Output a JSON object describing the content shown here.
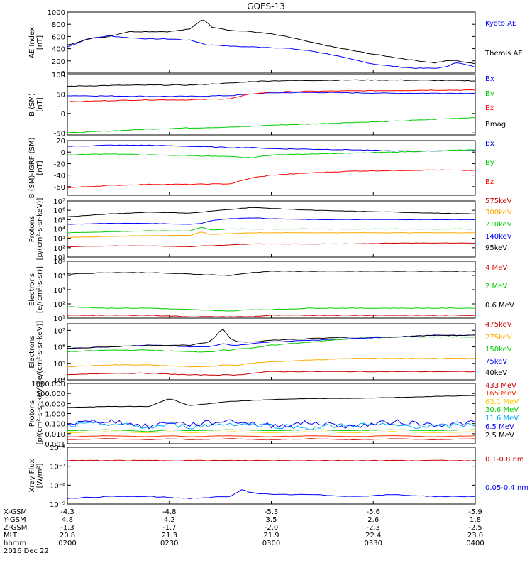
{
  "title": "GOES-13",
  "date": "2016 Dec 22",
  "ephemeris": {
    "rows": [
      {
        "name": "X-GSM",
        "values": [
          "-4.3",
          "-4.8",
          "-5.3",
          "-5.6",
          "-5.9"
        ]
      },
      {
        "name": "Y-GSM",
        "values": [
          "4.8",
          "4.2",
          "3.5",
          "2.6",
          "1.8"
        ]
      },
      {
        "name": "Z-GSM",
        "values": [
          "-1.3",
          "-1.7",
          "-2.0",
          "-2.3",
          "-2.5"
        ]
      },
      {
        "name": "MLT",
        "values": [
          "20.8",
          "21.3",
          "21.9",
          "22.4",
          "23.0"
        ]
      },
      {
        "name": "hhmm",
        "values": [
          "0200",
          "0230",
          "0300",
          "0330",
          "0400"
        ]
      }
    ]
  },
  "chart_data": [
    {
      "type": "line",
      "ylabel": [
        "AE Index",
        "[nT]"
      ],
      "ylim": [
        0,
        1000
      ],
      "yticks": [
        "1000",
        "800",
        "600",
        "400",
        "200",
        "0"
      ],
      "ytick_values": [
        1000,
        800,
        600,
        400,
        200,
        0
      ],
      "x": [
        0,
        0.05,
        0.1,
        0.15,
        0.2,
        0.25,
        0.3,
        0.33,
        0.34,
        0.35,
        0.37,
        0.4,
        0.45,
        0.5,
        0.55,
        0.6,
        0.65,
        0.7,
        0.75,
        0.8,
        0.85,
        0.9,
        0.93,
        0.95,
        1.0
      ],
      "series": [
        {
          "name": "Kyoto AE",
          "color": "#0000ff",
          "values": [
            430,
            560,
            610,
            580,
            560,
            560,
            540,
            490,
            460,
            460,
            460,
            440,
            430,
            420,
            400,
            360,
            300,
            220,
            150,
            110,
            80,
            80,
            100,
            180,
            100
          ]
        },
        {
          "name": "Themis AE",
          "color": "#000000",
          "values": [
            460,
            560,
            600,
            680,
            680,
            680,
            720,
            880,
            860,
            760,
            740,
            700,
            680,
            640,
            580,
            500,
            430,
            370,
            310,
            260,
            210,
            170,
            200,
            210,
            150
          ]
        }
      ]
    },
    {
      "type": "line",
      "ylabel": [
        "B (SM)",
        "[nT]"
      ],
      "ylim": [
        -55,
        100
      ],
      "yticks": [
        "100",
        "50",
        "0",
        "-50"
      ],
      "ytick_values": [
        100,
        50,
        0,
        -50
      ],
      "x": [
        0,
        0.1,
        0.2,
        0.3,
        0.4,
        0.45,
        0.5,
        0.6,
        0.7,
        0.8,
        0.9,
        1.0
      ],
      "series": [
        {
          "name": "Bx",
          "color": "#0000ff",
          "values": [
            46,
            45,
            44,
            44,
            46,
            50,
            53,
            54,
            53,
            52,
            52,
            52
          ]
        },
        {
          "name": "By",
          "color": "#00cc00",
          "values": [
            -50,
            -45,
            -40,
            -37,
            -35,
            -33,
            -30,
            -27,
            -23,
            -20,
            -15,
            -10
          ]
        },
        {
          "name": "Bz",
          "color": "#ff0000",
          "values": [
            30,
            33,
            35,
            35,
            38,
            50,
            55,
            57,
            58,
            59,
            60,
            60
          ]
        },
        {
          "name": "Bmag",
          "color": "#000000",
          "values": [
            70,
            72,
            73,
            73,
            78,
            82,
            84,
            85,
            86,
            86,
            85,
            84
          ]
        }
      ]
    },
    {
      "type": "line",
      "ylabel": [
        "B (SM)-IGRF (SM)",
        "[nT]"
      ],
      "ylim": [
        -75,
        20
      ],
      "yticks": [
        "20",
        "0",
        "-20",
        "-40",
        "-60"
      ],
      "ytick_values": [
        20,
        0,
        -20,
        -40,
        -60
      ],
      "x": [
        0,
        0.1,
        0.2,
        0.3,
        0.4,
        0.45,
        0.5,
        0.6,
        0.7,
        0.8,
        0.9,
        1.0
      ],
      "series": [
        {
          "name": "Bx",
          "color": "#0000ff",
          "values": [
            10,
            12,
            12,
            10,
            8,
            8,
            6,
            5,
            4,
            2,
            2,
            3
          ]
        },
        {
          "name": "By",
          "color": "#00cc00",
          "values": [
            -5,
            -3,
            -5,
            -6,
            -8,
            -10,
            -5,
            -3,
            -2,
            0,
            2,
            4
          ]
        },
        {
          "name": "Bz",
          "color": "#ff0000",
          "values": [
            -62,
            -58,
            -56,
            -56,
            -55,
            -45,
            -40,
            -36,
            -33,
            -32,
            -31,
            -32
          ]
        }
      ]
    },
    {
      "type": "line",
      "log": true,
      "ylabel": [
        "Protons",
        "[p/(cm²-s-sr-keV)]"
      ],
      "ylim": [
        1,
        7
      ],
      "yticks": [
        "10¹",
        "10²",
        "10³",
        "10⁴",
        "10⁵",
        "10⁶",
        "10⁷"
      ],
      "ytick_values": [
        1,
        2,
        3,
        4,
        5,
        6,
        7
      ],
      "x": [
        0,
        0.1,
        0.2,
        0.3,
        0.33,
        0.35,
        0.4,
        0.45,
        0.5,
        0.6,
        0.7,
        0.8,
        0.9,
        1.0
      ],
      "series": [
        {
          "name": "575keV",
          "color": "#cc0000",
          "values": [
            2.1,
            2.2,
            2.2,
            2.1,
            2.2,
            2.2,
            2.3,
            2.4,
            2.4,
            2.4,
            2.4,
            2.5,
            2.5,
            2.5
          ]
        },
        {
          "name": "300keV",
          "color": "#ffaa00",
          "values": [
            3.1,
            3.2,
            3.3,
            3.3,
            3.7,
            3.4,
            3.5,
            3.6,
            3.6,
            3.6,
            3.6,
            3.6,
            3.6,
            3.6
          ]
        },
        {
          "name": "210keV",
          "color": "#00cc00",
          "values": [
            3.6,
            3.7,
            3.8,
            3.8,
            4.2,
            3.9,
            4.0,
            4.0,
            4.0,
            4.0,
            4.0,
            4.0,
            4.0,
            4.0
          ]
        },
        {
          "name": "140keV",
          "color": "#0000ff",
          "values": [
            4.5,
            4.6,
            4.6,
            4.5,
            4.6,
            4.9,
            5.1,
            5.2,
            5.1,
            5.0,
            5.0,
            5.0,
            5.0,
            5.0
          ]
        },
        {
          "name": "95keV",
          "color": "#000000",
          "values": [
            5.3,
            5.6,
            5.8,
            5.7,
            5.8,
            5.9,
            6.1,
            6.3,
            6.2,
            6.0,
            5.9,
            5.8,
            5.7,
            5.6
          ]
        }
      ]
    },
    {
      "type": "line",
      "log": true,
      "ylabel": [
        "Electrons",
        "[e/(cm²-s-sr)]"
      ],
      "ylim": [
        1,
        5
      ],
      "yticks": [
        "10¹",
        "10²",
        "10³",
        "10⁴",
        "10⁵"
      ],
      "ytick_values": [
        1,
        2,
        3,
        4,
        5
      ],
      "x": [
        0,
        0.1,
        0.2,
        0.3,
        0.4,
        0.45,
        0.5,
        0.6,
        0.7,
        0.8,
        0.9,
        1.0
      ],
      "series": [
        {
          "name": "4 MeV",
          "color": "#cc0000",
          "values": [
            1.2,
            1.2,
            1.2,
            1.1,
            1.1,
            1.1,
            1.2,
            1.2,
            1.2,
            1.2,
            1.2,
            1.2
          ]
        },
        {
          "name": "2 MeV",
          "color": "#00cc00",
          "values": [
            1.8,
            1.7,
            1.7,
            1.6,
            1.5,
            1.6,
            1.6,
            1.7,
            1.7,
            1.7,
            1.7,
            1.7
          ]
        },
        {
          "name": "0.6 MeV",
          "color": "#000000",
          "values": [
            4.1,
            4.2,
            4.2,
            4.1,
            4.0,
            4.2,
            4.3,
            4.3,
            4.3,
            4.3,
            4.3,
            4.3
          ]
        }
      ]
    },
    {
      "type": "line",
      "log": true,
      "ylabel": [
        "Electrons",
        "[e/(cm²-s-sr-keV)]"
      ],
      "ylim": [
        4,
        7.4
      ],
      "yticks": [
        "10⁴",
        "10⁵",
        "10⁶",
        "10⁷"
      ],
      "ytick_values": [
        4,
        5,
        6,
        7
      ],
      "x": [
        0,
        0.1,
        0.2,
        0.3,
        0.35,
        0.38,
        0.4,
        0.42,
        0.45,
        0.5,
        0.6,
        0.7,
        0.8,
        0.9,
        1.0
      ],
      "series": [
        {
          "name": "475keV",
          "color": "#cc0000",
          "values": [
            4.3,
            4.4,
            4.4,
            4.3,
            4.3,
            4.3,
            4.3,
            4.3,
            4.4,
            4.5,
            4.5,
            4.5,
            4.5,
            4.5,
            4.5
          ]
        },
        {
          "name": "275keV",
          "color": "#ffaa00",
          "values": [
            4.8,
            4.9,
            4.9,
            4.8,
            4.8,
            4.9,
            4.9,
            4.9,
            5.0,
            5.1,
            5.2,
            5.3,
            5.3,
            5.3,
            5.3
          ]
        },
        {
          "name": "150keV",
          "color": "#00cc00",
          "values": [
            5.7,
            5.8,
            5.8,
            5.7,
            5.7,
            5.8,
            5.8,
            5.9,
            5.9,
            6.1,
            6.3,
            6.5,
            6.6,
            6.6,
            6.6
          ]
        },
        {
          "name": "75keV",
          "color": "#0000ff",
          "values": [
            5.9,
            6.0,
            6.1,
            6.0,
            6.0,
            6.2,
            6.1,
            6.1,
            6.2,
            6.3,
            6.4,
            6.5,
            6.6,
            6.7,
            6.7
          ]
        },
        {
          "name": "40keV",
          "color": "#000000",
          "values": [
            5.9,
            6.0,
            6.1,
            6.1,
            6.3,
            7.1,
            6.5,
            6.3,
            6.3,
            6.4,
            6.5,
            6.6,
            6.6,
            6.7,
            6.7
          ]
        }
      ]
    },
    {
      "type": "line",
      "log": true,
      "ylabel": [
        "Protons",
        "[p/(cm²-s-sr-keV)]"
      ],
      "ylim": [
        -3,
        3
      ],
      "yticks": [
        "1000.000",
        "100.000",
        "10.000",
        "1.000",
        "0.100",
        "0.010",
        "0.001"
      ],
      "ytick_values": [
        3,
        2,
        1,
        0,
        -1,
        -2,
        -3
      ],
      "x": [
        0,
        0.1,
        0.2,
        0.25,
        0.3,
        0.4,
        0.5,
        0.6,
        0.7,
        0.8,
        0.9,
        1.0
      ],
      "series": [
        {
          "name": "433 MeV",
          "color": "#cc0000",
          "values": [
            -2.6,
            -2.5,
            -2.6,
            -2.5,
            -2.6,
            -2.5,
            -2.6,
            -2.5,
            -2.6,
            -2.5,
            -2.6,
            -2.5
          ]
        },
        {
          "name": "165 MeV",
          "color": "#ff3300",
          "values": [
            -2.3,
            -2.2,
            -2.3,
            -2.2,
            -2.3,
            -2.2,
            -2.3,
            -2.2,
            -2.3,
            -2.2,
            -2.3,
            -2.2
          ]
        },
        {
          "name": "63.1 MeV",
          "color": "#ffcc00",
          "values": [
            -1.9,
            -1.8,
            -1.9,
            -1.8,
            -1.9,
            -1.8,
            -1.9,
            -1.8,
            -1.9,
            -1.8,
            -1.9,
            -1.8
          ]
        },
        {
          "name": "30.6 MeV",
          "color": "#00cc00",
          "values": [
            -1.7,
            -1.6,
            -1.8,
            -1.6,
            -1.7,
            -1.6,
            -1.7,
            -1.6,
            -1.7,
            -1.6,
            -1.7,
            -1.6
          ]
        },
        {
          "name": "11.6 MeV",
          "color": "#00aaff",
          "values": [
            -1.2,
            -1.0,
            -1.4,
            -1.1,
            -1.3,
            -1.0,
            -1.2,
            -1.4,
            -1.1,
            -1.2,
            -1.3,
            -1.1
          ]
        },
        {
          "name": "6.5 MeV",
          "color": "#0000ff",
          "values": [
            -1.0,
            -0.7,
            -1.3,
            -0.8,
            -1.1,
            -0.7,
            -1.2,
            -0.9,
            -1.3,
            -0.8,
            -1.1,
            -0.9
          ]
        },
        {
          "name": "2.5 MeV",
          "color": "#000000",
          "values": [
            0.6,
            0.7,
            0.7,
            1.5,
            0.8,
            1.2,
            1.4,
            1.5,
            1.5,
            1.6,
            1.7,
            1.8
          ]
        }
      ]
    },
    {
      "type": "line",
      "log": true,
      "ylabel": [
        "Xray Flux",
        "[W/m²]"
      ],
      "ylim": [
        -9,
        -6
      ],
      "yticks": [
        "10⁻⁶",
        "10⁻⁷",
        "10⁻⁸",
        "10⁻⁹"
      ],
      "ytick_values": [
        -6,
        -7,
        -8,
        -9
      ],
      "x": [
        0,
        0.1,
        0.2,
        0.3,
        0.4,
        0.43,
        0.45,
        0.5,
        0.6,
        0.7,
        0.8,
        0.9,
        1.0
      ],
      "series": [
        {
          "name": "0.1-0.8 nm",
          "color": "#cc0000",
          "values": [
            -6.7,
            -6.7,
            -6.7,
            -6.7,
            -6.7,
            -6.7,
            -6.7,
            -6.7,
            -6.7,
            -6.7,
            -6.7,
            -6.7,
            -6.7
          ]
        },
        {
          "name": "0.05-0.4 nm",
          "color": "#0000ff",
          "values": [
            -8.7,
            -8.6,
            -8.6,
            -8.7,
            -8.6,
            -8.2,
            -8.4,
            -8.5,
            -8.5,
            -8.6,
            -8.5,
            -8.6,
            -8.6
          ]
        }
      ]
    }
  ]
}
